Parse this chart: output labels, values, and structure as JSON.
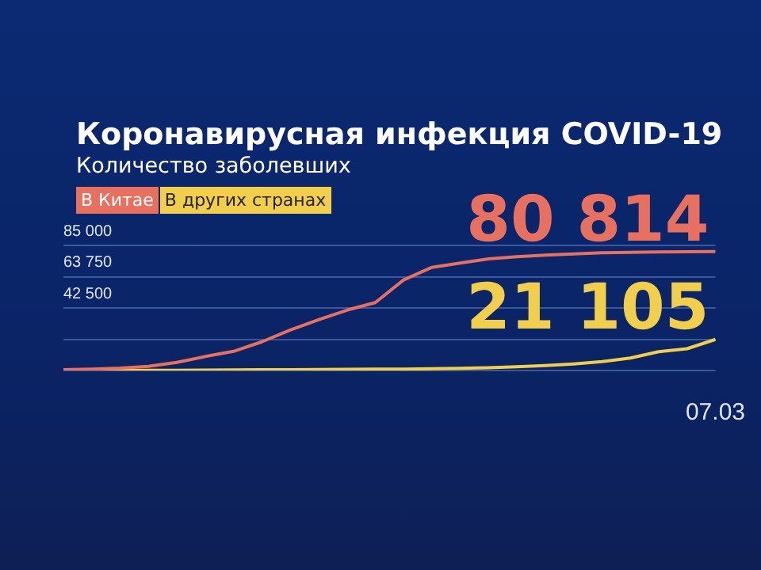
{
  "chart_data": {
    "type": "line",
    "title": "Коронавирусная инфекция COVID-19",
    "subtitle": "Количество заболевших",
    "categories": [
      null,
      null,
      null,
      null,
      null,
      null,
      null,
      null,
      null,
      null,
      null,
      null,
      null,
      null,
      null,
      null,
      null,
      null,
      null,
      null,
      null,
      null,
      null,
      "07.03"
    ],
    "series": [
      {
        "name": "В Китае",
        "color": "#e8705f",
        "values": [
          500,
          900,
          1600,
          2800,
          5500,
          9500,
          13000,
          19500,
          27500,
          34500,
          41000,
          46100,
          61500,
          70100,
          73000,
          75900,
          77300,
          78400,
          79200,
          80000,
          80300,
          80500,
          80700,
          80814
        ],
        "value_labels": [
          null,
          null,
          null,
          null,
          null,
          null,
          null,
          null,
          null,
          null,
          null,
          null,
          null,
          null,
          null,
          null,
          null,
          null,
          null,
          null,
          null,
          null,
          null,
          "80 814"
        ]
      },
      {
        "name": "В других странах",
        "color": "#f2cf4a",
        "values": [
          0,
          0,
          0,
          100,
          200,
          300,
          400,
          500,
          600,
          700,
          800,
          900,
          1000,
          1200,
          1500,
          1900,
          2500,
          3300,
          4500,
          6000,
          8500,
          12800,
          14800,
          21105
        ],
        "value_labels": [
          null,
          null,
          null,
          null,
          null,
          null,
          null,
          null,
          null,
          null,
          null,
          null,
          null,
          null,
          null,
          null,
          null,
          null,
          null,
          null,
          null,
          null,
          null,
          "21 105"
        ]
      }
    ],
    "ylim": [
      0,
      85000
    ],
    "yticks": [
      {
        "value": 0,
        "label": null
      },
      {
        "value": 21250,
        "label": null
      },
      {
        "value": 42500,
        "label": "42 500"
      },
      {
        "value": 63750,
        "label": "63 750"
      },
      {
        "value": 85000,
        "label": "85 000"
      }
    ],
    "grid": "y",
    "legend": "top left",
    "line_style": "solid",
    "marker": "none"
  }
}
